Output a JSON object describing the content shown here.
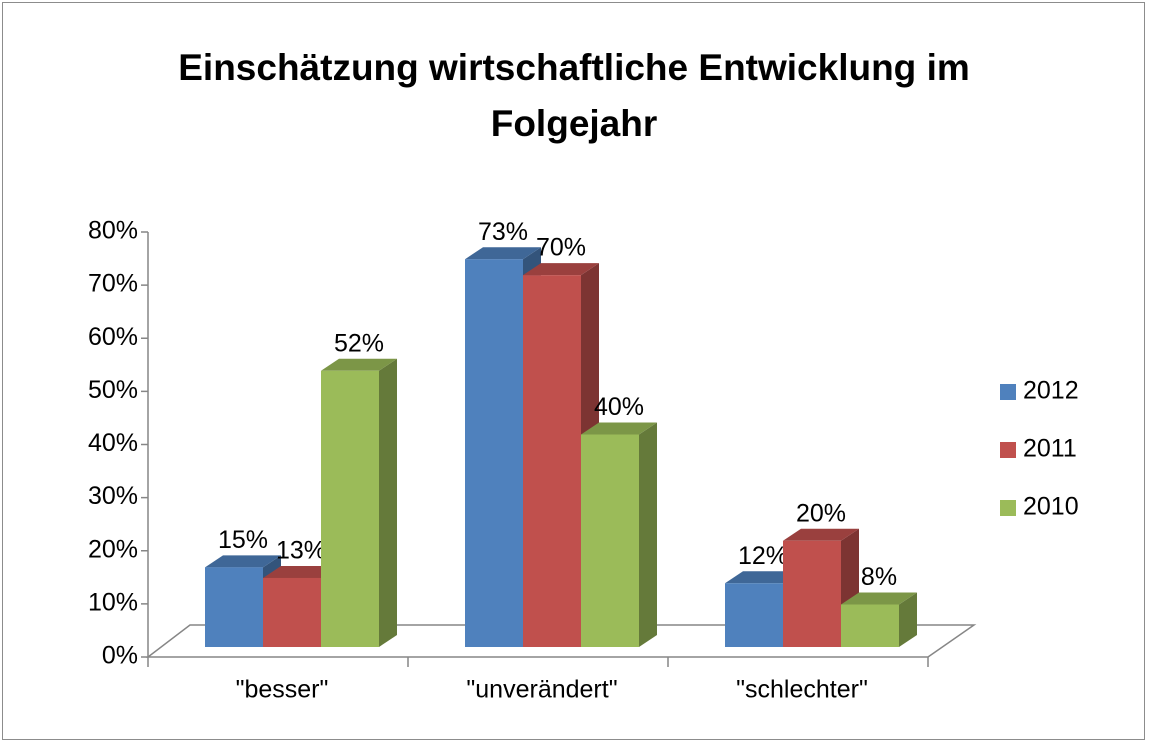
{
  "chart_data": {
    "type": "bar3d",
    "title": "Einschätzung wirtschaftliche Entwicklung im Folgejahr",
    "categories": [
      "\"besser\"",
      "\"unverändert\"",
      "\"schlechter\""
    ],
    "series": [
      {
        "name": "2012",
        "color": "#4f81bd",
        "values": [
          15,
          73,
          12
        ],
        "value_labels": [
          "15%",
          "73%",
          "12%"
        ]
      },
      {
        "name": "2011",
        "color": "#c0504d",
        "values": [
          13,
          70,
          20
        ],
        "value_labels": [
          "13%",
          "70%",
          "20%"
        ]
      },
      {
        "name": "2010",
        "color": "#9bbb59",
        "values": [
          52,
          40,
          8
        ],
        "value_labels": [
          "52%",
          "40%",
          "8%"
        ]
      }
    ],
    "ylim": [
      0,
      80
    ],
    "yticks": [
      {
        "value": 0,
        "label": "0%"
      },
      {
        "value": 10,
        "label": "10%"
      },
      {
        "value": 20,
        "label": "20%"
      },
      {
        "value": 30,
        "label": "30%"
      },
      {
        "value": 40,
        "label": "40%"
      },
      {
        "value": 50,
        "label": "50%"
      },
      {
        "value": 60,
        "label": "60%"
      },
      {
        "value": 70,
        "label": "70%"
      },
      {
        "value": 80,
        "label": "80%"
      }
    ],
    "legend": "right"
  }
}
